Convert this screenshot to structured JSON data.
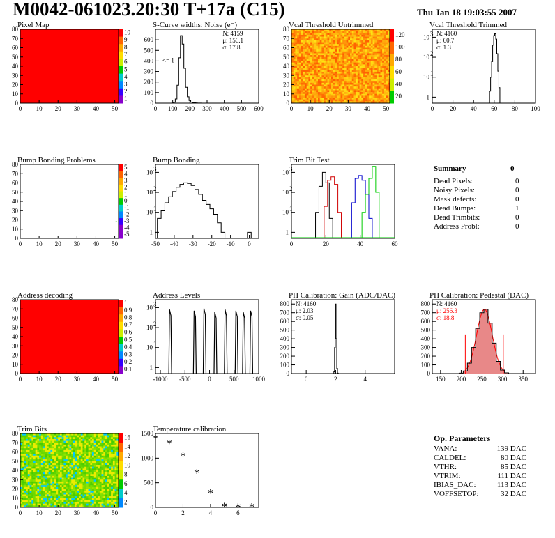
{
  "header": {
    "title": "M0042-061023.20:30 T+17a (C15)",
    "timestamp": "Thu Jan 18 19:03:55 2007"
  },
  "summary": {
    "title": "Summary",
    "value": "0",
    "rows": [
      {
        "label": "Dead Pixels:",
        "value": "0"
      },
      {
        "label": "Noisy Pixels:",
        "value": "0"
      },
      {
        "label": "Mask defects:",
        "value": "0"
      },
      {
        "label": "Dead Bumps:",
        "value": "1"
      },
      {
        "label": "Dead Trimbits:",
        "value": "0"
      },
      {
        "label": "Address Probl:",
        "value": "0"
      }
    ]
  },
  "op_parameters": {
    "title": "Op. Parameters",
    "rows": [
      {
        "label": "VANA:",
        "value": "139 DAC"
      },
      {
        "label": "CALDEL:",
        "value": "80 DAC"
      },
      {
        "label": "VTHR:",
        "value": "85 DAC"
      },
      {
        "label": "VTRIM:",
        "value": "111 DAC"
      },
      {
        "label": "IBIAS_DAC:",
        "value": "113 DAC"
      },
      {
        "label": "VOFFSETOP:",
        "value": "32 DAC"
      }
    ]
  },
  "colors": {
    "red_map": "#ff0000",
    "histogram_line": "#000000",
    "trim_red": "#d00000",
    "trim_green": "#00cc00",
    "trim_blue": "#0000cc",
    "pedestal_fill": "#e88888",
    "pedestal_fit": "#ff0000"
  },
  "chart_data": [
    {
      "id": "pixel-map",
      "type": "heatmap",
      "title": "Pixel Map",
      "xticks": [
        "0",
        "10",
        "20",
        "30",
        "40",
        "50"
      ],
      "yticks": [
        "0",
        "10",
        "20",
        "30",
        "40",
        "50",
        "60",
        "70",
        "80"
      ],
      "xlim": [
        0,
        52
      ],
      "ylim": [
        0,
        80
      ],
      "uniform_color": "#ff0000",
      "colorbar_ticks": [
        "10",
        "9",
        "8",
        "7",
        "6",
        "5",
        "4",
        "3",
        "2",
        "1"
      ]
    },
    {
      "id": "scurve-noise",
      "type": "bar",
      "title": "S-Curve widths: Noise (e⁻)",
      "xlim": [
        0,
        600
      ],
      "ylim": [
        0,
        700
      ],
      "xticks": [
        "0",
        "100",
        "200",
        "300",
        "400",
        "500",
        "600"
      ],
      "yticks": [
        "0",
        "100",
        "200",
        "300",
        "400",
        "500",
        "600"
      ],
      "stats": [
        "N: 4159",
        "μ: 156.1",
        "σ: 17.8"
      ],
      "annotation": "<= 1",
      "x": [
        100,
        110,
        120,
        130,
        140,
        150,
        160,
        170,
        180,
        190,
        200,
        210,
        220,
        230,
        240,
        250,
        260
      ],
      "values": [
        2,
        8,
        40,
        170,
        430,
        640,
        560,
        330,
        150,
        60,
        25,
        10,
        5,
        3,
        2,
        1,
        1
      ]
    },
    {
      "id": "vcal-untrimmed",
      "type": "heatmap",
      "title": "Vcal Threshold Untrimmed",
      "xticks": [
        "0",
        "10",
        "20",
        "30",
        "40",
        "50"
      ],
      "yticks": [
        "0",
        "10",
        "20",
        "30",
        "40",
        "50",
        "60",
        "70",
        "80"
      ],
      "xlim": [
        0,
        52
      ],
      "ylim": [
        0,
        80
      ],
      "colorbar_ticks": [
        "120",
        "100",
        "80",
        "60",
        "40",
        "20"
      ]
    },
    {
      "id": "vcal-trimmed",
      "type": "bar",
      "title": "Vcal Threshold Trimmed",
      "xlim": [
        0,
        100
      ],
      "log_y": true,
      "xticks": [
        "0",
        "20",
        "40",
        "60",
        "80",
        "100"
      ],
      "stats": [
        "N: 4160",
        "μ: 60.7",
        "σ: 1.3"
      ],
      "x": [
        56,
        57,
        58,
        59,
        60,
        61,
        62,
        63,
        64,
        65
      ],
      "values": [
        2,
        10,
        60,
        400,
        1200,
        1500,
        800,
        150,
        20,
        3
      ]
    },
    {
      "id": "bump-bonding-problems",
      "type": "heatmap",
      "title": "Bump Bonding Problems",
      "xticks": [
        "0",
        "10",
        "20",
        "30",
        "40",
        "50"
      ],
      "yticks": [
        "0",
        "10",
        "20",
        "30",
        "40",
        "50",
        "60",
        "70",
        "80"
      ],
      "xlim": [
        0,
        52
      ],
      "ylim": [
        0,
        80
      ],
      "colorbar_ticks": [
        "5",
        "4",
        "3",
        "2",
        "1",
        "0",
        "-1",
        "-2",
        "-3",
        "-4",
        "-5"
      ]
    },
    {
      "id": "bump-bonding",
      "type": "bar",
      "title": "Bump Bonding",
      "xlim": [
        -50,
        5
      ],
      "log_y": true,
      "xticks": [
        "-50",
        "-40",
        "-30",
        "-20",
        "-10",
        "0"
      ],
      "x": [
        -48,
        -46,
        -44,
        -42,
        -40,
        -38,
        -36,
        -34,
        -32,
        -30,
        -28,
        -26,
        -24,
        -22,
        -20,
        -18,
        -16,
        -14,
        0
      ],
      "values": [
        5,
        12,
        30,
        60,
        110,
        180,
        250,
        300,
        280,
        220,
        140,
        80,
        40,
        25,
        15,
        8,
        3,
        1,
        1
      ]
    },
    {
      "id": "trim-bit-test",
      "type": "line",
      "title": "Trim Bit Test",
      "xlim": [
        0,
        60
      ],
      "log_y": true,
      "xticks": [
        "0",
        "20",
        "40",
        "60"
      ],
      "series": [
        {
          "color": "#000000",
          "x": [
            15,
            17,
            19,
            21,
            23
          ],
          "values": [
            10,
            200,
            1000,
            300,
            5
          ]
        },
        {
          "color": "#d00000",
          "x": [
            20,
            22,
            24,
            26,
            28
          ],
          "values": [
            20,
            400,
            600,
            250,
            10
          ]
        },
        {
          "color": "#0000cc",
          "x": [
            36,
            38,
            40,
            42,
            44,
            46
          ],
          "values": [
            30,
            500,
            700,
            400,
            80,
            5
          ]
        },
        {
          "color": "#00cc00",
          "x": [
            42,
            44,
            46,
            48,
            50
          ],
          "values": [
            10,
            80,
            500,
            2000,
            100
          ]
        }
      ]
    },
    {
      "id": "address-decoding",
      "type": "heatmap",
      "title": "Address decoding",
      "xticks": [
        "0",
        "10",
        "20",
        "30",
        "40",
        "50"
      ],
      "yticks": [
        "0",
        "10",
        "20",
        "30",
        "40",
        "50",
        "60",
        "70",
        "80"
      ],
      "xlim": [
        0,
        52
      ],
      "ylim": [
        0,
        80
      ],
      "uniform_color": "#ff0000",
      "colorbar_ticks": [
        "1",
        "0.9",
        "0.8",
        "0.7",
        "0.6",
        "0.5",
        "0.4",
        "0.3",
        "0.2",
        "0.1"
      ]
    },
    {
      "id": "address-levels",
      "type": "bar",
      "title": "Address Levels",
      "xlim": [
        -1100,
        1000
      ],
      "log_y": true,
      "xticks": [
        "-1000",
        "-500",
        "0",
        "500",
        "1000"
      ],
      "x": [
        -800,
        -300,
        -100,
        120,
        330,
        550,
        700,
        850
      ],
      "values": [
        800,
        700,
        900,
        600,
        800,
        700,
        600,
        700
      ]
    },
    {
      "id": "ph-gain",
      "type": "bar",
      "title": "PH Calibration: Gain (ADC/DAC)",
      "xlim": [
        -1,
        6
      ],
      "ylim": [
        0,
        850
      ],
      "xticks": [
        "0",
        "2",
        "4"
      ],
      "yticks": [
        "0",
        "100",
        "200",
        "300",
        "400",
        "500",
        "600",
        "700",
        "800"
      ],
      "stats": [
        "N: 4160",
        "μ: 2.03",
        "σ: 0.05"
      ],
      "x": [
        1.9,
        1.95,
        2.0,
        2.05,
        2.1,
        2.15
      ],
      "values": [
        20,
        300,
        800,
        400,
        60,
        5
      ]
    },
    {
      "id": "ph-pedestal",
      "type": "bar",
      "title": "PH Calibration: Pedestal (DAC)",
      "xlim": [
        130,
        380
      ],
      "ylim": [
        0,
        850
      ],
      "xticks": [
        "150",
        "200",
        "250",
        "300",
        "350"
      ],
      "yticks": [
        "0",
        "100",
        "200",
        "300",
        "400",
        "500",
        "600",
        "700",
        "800"
      ],
      "stats": [
        "N: 4160",
        "μ: 256.3",
        "σ: 18.8"
      ],
      "x": [
        200,
        210,
        220,
        230,
        240,
        250,
        260,
        270,
        280,
        290,
        300,
        310
      ],
      "values": [
        5,
        30,
        120,
        300,
        520,
        700,
        740,
        580,
        350,
        140,
        40,
        8
      ]
    },
    {
      "id": "trim-bits",
      "type": "heatmap",
      "title": "Trim Bits",
      "xticks": [
        "0",
        "10",
        "20",
        "30",
        "40",
        "50"
      ],
      "yticks": [
        "0",
        "10",
        "20",
        "30",
        "40",
        "50",
        "60",
        "70",
        "80"
      ],
      "xlim": [
        0,
        52
      ],
      "ylim": [
        0,
        80
      ],
      "colorbar_ticks": [
        "16",
        "14",
        "12",
        "10",
        "8",
        "6",
        "4",
        "2"
      ]
    },
    {
      "id": "temperature-calibration",
      "type": "scatter",
      "title": "Temperature calibration",
      "xlim": [
        0,
        7.5
      ],
      "ylim": [
        0,
        1500
      ],
      "xticks": [
        "0",
        "2",
        "4",
        "6"
      ],
      "yticks": [
        "0",
        "500",
        "1000",
        "1500"
      ],
      "x": [
        0,
        1,
        2,
        3,
        4,
        5,
        6,
        7
      ],
      "values": [
        1400,
        1300,
        1050,
        700,
        300,
        20,
        10,
        15
      ]
    }
  ]
}
